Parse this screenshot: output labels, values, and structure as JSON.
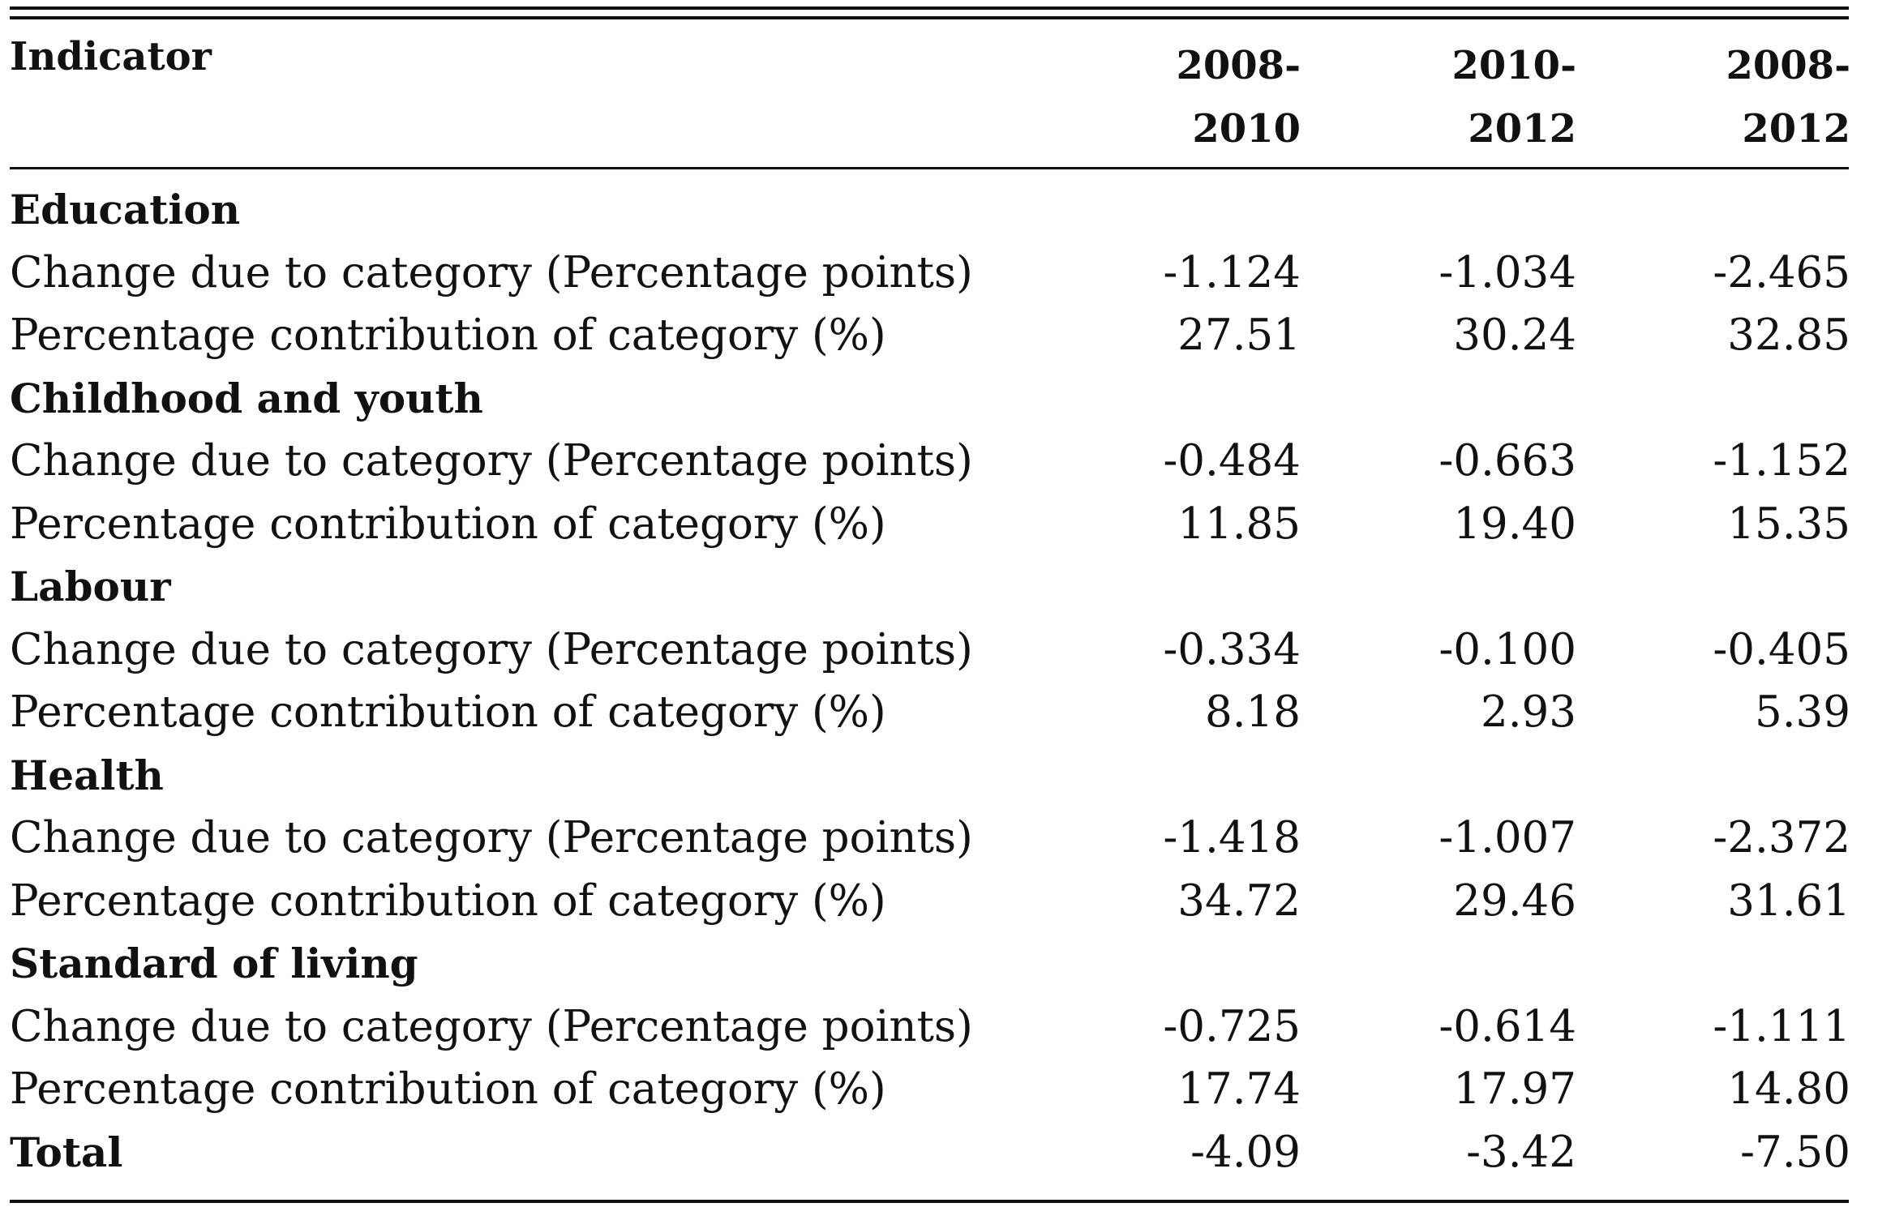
{
  "table": {
    "header": {
      "indicator": "Indicator",
      "columns": [
        {
          "line1": "2008-",
          "line2": "2010"
        },
        {
          "line1": "2010-",
          "line2": "2012"
        },
        {
          "line1": "2008-",
          "line2": "2012"
        }
      ]
    },
    "groups": [
      {
        "name": "Education",
        "rows": [
          {
            "label": "Change due to category (Percentage points)",
            "values": [
              "-1.124",
              "-1.034",
              "-2.465"
            ]
          },
          {
            "label": "Percentage contribution of category (%)",
            "values": [
              "27.51",
              "30.24",
              "32.85"
            ]
          }
        ]
      },
      {
        "name": "Childhood and youth",
        "rows": [
          {
            "label": "Change due to category (Percentage points)",
            "values": [
              "-0.484",
              "-0.663",
              "-1.152"
            ]
          },
          {
            "label": "Percentage contribution of category (%)",
            "values": [
              "11.85",
              "19.40",
              "15.35"
            ]
          }
        ]
      },
      {
        "name": "Labour",
        "rows": [
          {
            "label": "Change due to category (Percentage points)",
            "values": [
              "-0.334",
              "-0.100",
              "-0.405"
            ]
          },
          {
            "label": "Percentage contribution of category (%)",
            "values": [
              "8.18",
              "2.93",
              "5.39"
            ]
          }
        ]
      },
      {
        "name": "Health",
        "rows": [
          {
            "label": "Change due to category (Percentage points)",
            "values": [
              "-1.418",
              "-1.007",
              "-2.372"
            ]
          },
          {
            "label": "Percentage contribution of category (%)",
            "values": [
              "34.72",
              "29.46",
              "31.61"
            ]
          }
        ]
      },
      {
        "name": "Standard of living",
        "rows": [
          {
            "label": "Change due to category (Percentage points)",
            "values": [
              "-0.725",
              "-0.614",
              "-1.111"
            ]
          },
          {
            "label": "Percentage contribution of category (%)",
            "values": [
              "17.74",
              "17.97",
              "14.80"
            ]
          }
        ]
      }
    ],
    "total": {
      "label": "Total",
      "values": [
        "-4.09",
        "-3.42",
        "-7.50"
      ]
    }
  }
}
